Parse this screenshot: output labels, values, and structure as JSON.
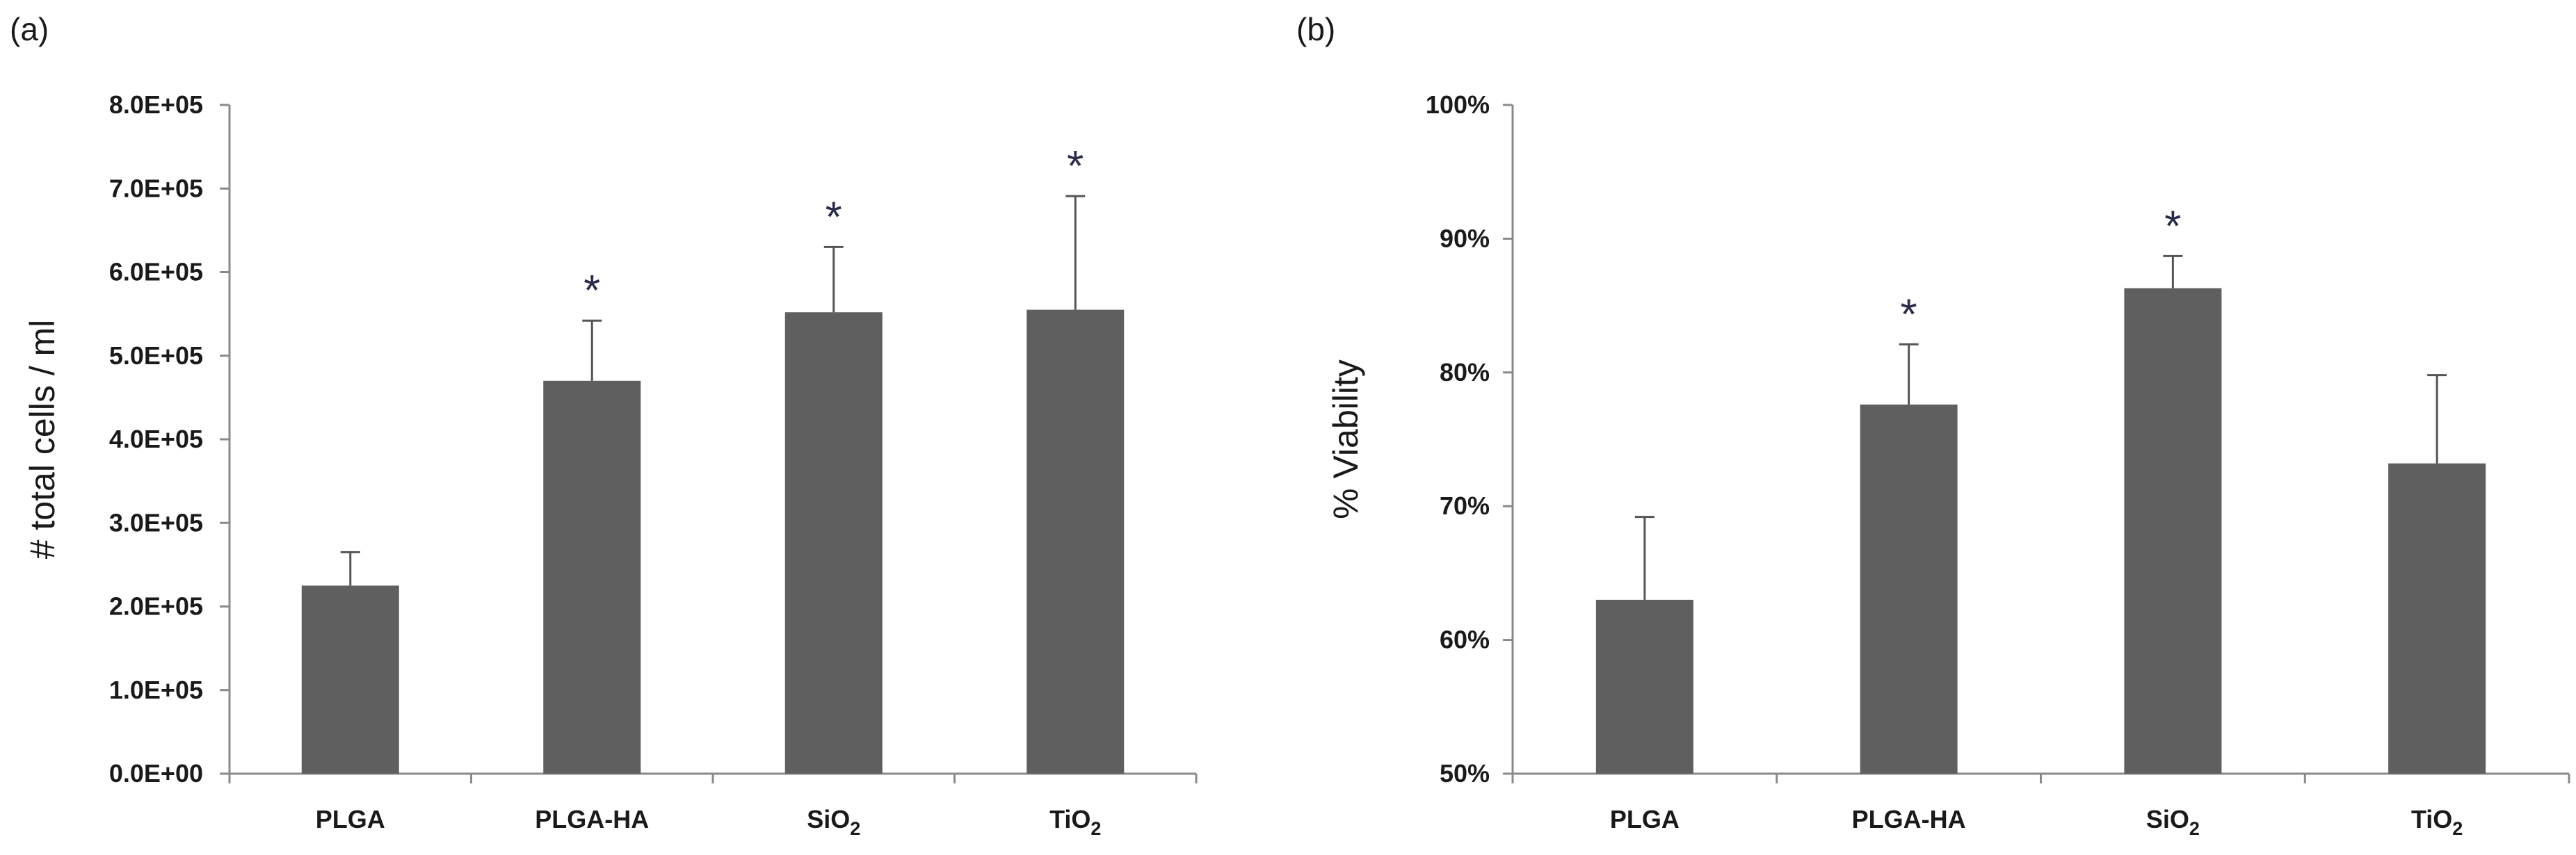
{
  "chart_data": [
    {
      "type": "bar",
      "panel_label": "(a)",
      "categories": [
        "PLGA",
        "PLGA-HA",
        "SiO2",
        "TiO2"
      ],
      "category_labels": [
        {
          "base": "PLGA",
          "sub": ""
        },
        {
          "base": "PLGA-HA",
          "sub": ""
        },
        {
          "base": "SiO",
          "sub": "2"
        },
        {
          "base": "TiO",
          "sub": "2"
        }
      ],
      "values": [
        225000,
        470000,
        552000,
        555000
      ],
      "errors": [
        40000,
        72000,
        78000,
        136000
      ],
      "significant": [
        false,
        true,
        true,
        true
      ],
      "significance_marker": "*",
      "ylabel": "# total cells / ml",
      "xlabel": "",
      "ylim": [
        0,
        800000
      ],
      "yticks": [
        0,
        100000,
        200000,
        300000,
        400000,
        500000,
        600000,
        700000,
        800000
      ],
      "ytick_labels": [
        "0.0E+00",
        "1.0E+05",
        "2.0E+05",
        "3.0E+05",
        "4.0E+05",
        "5.0E+05",
        "6.0E+05",
        "7.0E+05",
        "8.0E+05"
      ],
      "bar_color": "#5f5f5f"
    },
    {
      "type": "bar",
      "panel_label": "(b)",
      "categories": [
        "PLGA",
        "PLGA-HA",
        "SiO2",
        "TiO2"
      ],
      "category_labels": [
        {
          "base": "PLGA",
          "sub": ""
        },
        {
          "base": "PLGA-HA",
          "sub": ""
        },
        {
          "base": "SiO",
          "sub": "2"
        },
        {
          "base": "TiO",
          "sub": "2"
        }
      ],
      "values": [
        63,
        77.6,
        86.3,
        73.2
      ],
      "errors": [
        6.2,
        4.5,
        2.4,
        6.6
      ],
      "significant": [
        false,
        true,
        true,
        false
      ],
      "significance_marker": "*",
      "ylabel": "% Viability",
      "xlabel": "",
      "ylim": [
        50,
        100
      ],
      "yticks": [
        50,
        60,
        70,
        80,
        90,
        100
      ],
      "ytick_labels": [
        "50%",
        "60%",
        "70%",
        "80%",
        "90%",
        "100%"
      ],
      "bar_color": "#5f5f5f"
    }
  ]
}
